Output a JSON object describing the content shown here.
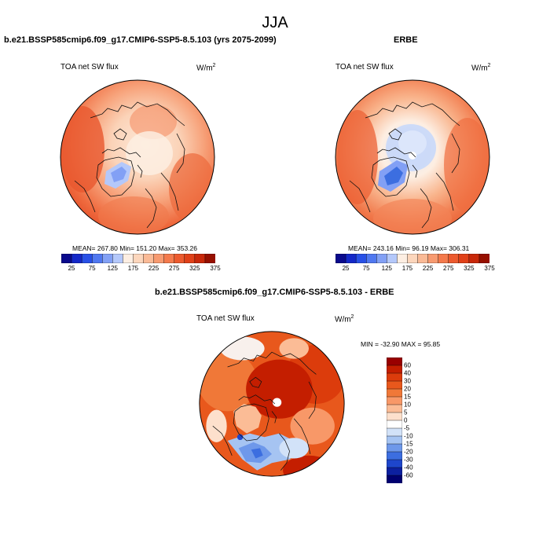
{
  "page_title": "JJA",
  "panels": [
    {
      "title": "b.e21.BSSP585cmip6.f09_g17.CMIP6-SSP5-8.5.103 (yrs 2075-2099)",
      "variable": "TOA net SW flux",
      "units_base": "W/m",
      "units_exp": "2",
      "stats": "MEAN= 267.80  Min= 151.20  Max= 353.26"
    },
    {
      "title": "ERBE",
      "variable": "TOA net SW flux",
      "units_base": "W/m",
      "units_exp": "2",
      "stats": "MEAN= 243.16  Min=  96.19  Max= 306.31"
    },
    {
      "title": "b.e21.BSSP585cmip6.f09_g17.CMIP6-SSP5-8.5.103 - ERBE",
      "variable": "TOA net SW flux",
      "units_base": "W/m",
      "units_exp": "2",
      "stats": "MIN = -32.90  MAX =  95.85"
    }
  ],
  "abs_colorbar": {
    "colors": [
      "#0a0a8c",
      "#1428c8",
      "#2850e6",
      "#5078f0",
      "#82a0f5",
      "#b4c8fa",
      "#fdeee2",
      "#fcd6bc",
      "#faba96",
      "#f79a70",
      "#f47a4c",
      "#ec5a2e",
      "#e04018",
      "#c8280a",
      "#961000"
    ],
    "tick_labels": [
      "25",
      "75",
      "125",
      "175",
      "225",
      "275",
      "325",
      "375"
    ]
  },
  "diff_colorbar": {
    "colors": [
      "#990000",
      "#c41e00",
      "#dc3c0c",
      "#e8581c",
      "#f07838",
      "#f89868",
      "#fbbc96",
      "#fde0cc",
      "#ffffff",
      "#d2e2f8",
      "#a6c4f2",
      "#6e98ea",
      "#3c6ee0",
      "#1e46cc",
      "#0c20a0",
      "#000070"
    ],
    "tick_labels": [
      "60",
      "40",
      "30",
      "20",
      "15",
      "10",
      "5",
      "0",
      "-5",
      "-10",
      "-15",
      "-20",
      "-30",
      "-40",
      "-60"
    ]
  },
  "icons": [
    "polar-stereographic-map-icon"
  ]
}
